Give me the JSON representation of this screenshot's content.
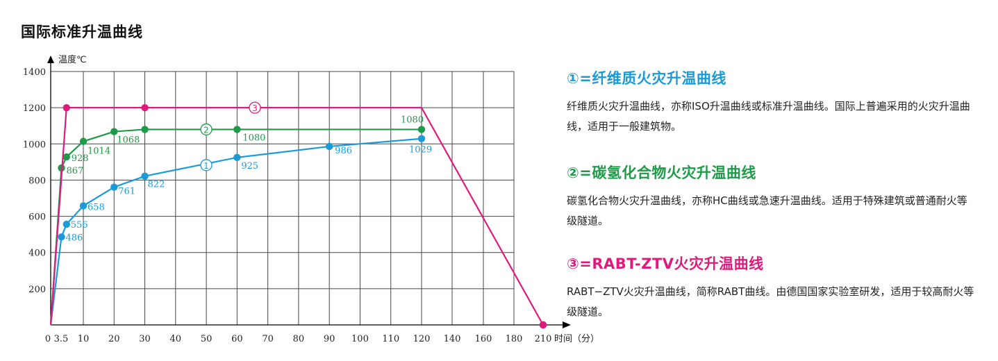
{
  "page": {
    "title": "国际标准升温曲线"
  },
  "legend": [
    {
      "heading": "①=纤维质火灾升温曲线",
      "color": "#1a9bd7",
      "desc": "纤维质火灾升温曲线，亦称ISO升温曲线或标准升温曲线。国际上普遍采用的火灾升温曲线，适用于一般建筑物。"
    },
    {
      "heading": "②=碳氢化合物火灾升温曲线",
      "color": "#1f9a48",
      "desc": "碳氢化合物火灾升温曲线，亦称HC曲线或急速升温曲线。适用于特殊建筑或普通耐火等级隧道。"
    },
    {
      "heading": "③=RABT-ZTV火灾升温曲线",
      "color": "#e0197d",
      "desc": "RABT−ZTV火灾升温曲线，简称RABT曲线。由德国国家实验室研发，适用于较高耐火等级隧道。"
    }
  ],
  "chart_data": {
    "type": "line",
    "xlabel": "时间（分）",
    "ylabel": "温度℃",
    "x_ticks": [
      "0",
      "3.5",
      "10",
      "20",
      "30",
      "40",
      "50",
      "60",
      "70",
      "80",
      "90",
      "100",
      "110",
      "120",
      "140",
      "160",
      "180",
      "210"
    ],
    "y_ticks": [
      "200",
      "400",
      "600",
      "800",
      "1000",
      "1200",
      "1400"
    ],
    "ylim": [
      0,
      1400
    ],
    "grid": true,
    "series": [
      {
        "name": "①",
        "color": "#1a9bd7",
        "points": [
          {
            "x": 0,
            "y": 0,
            "label": ""
          },
          {
            "x": 3.5,
            "y": 486,
            "label": "486"
          },
          {
            "x": 5,
            "y": 556,
            "label": "556"
          },
          {
            "x": 10,
            "y": 658,
            "label": "658"
          },
          {
            "x": 20,
            "y": 761,
            "label": "761"
          },
          {
            "x": 30,
            "y": 822,
            "label": "822"
          },
          {
            "x": 60,
            "y": 925,
            "label": "925"
          },
          {
            "x": 90,
            "y": 986,
            "label": "986"
          },
          {
            "x": 120,
            "y": 1029,
            "label": "1029"
          }
        ]
      },
      {
        "name": "②",
        "color": "#1f9a48",
        "points": [
          {
            "x": 0,
            "y": 0,
            "label": ""
          },
          {
            "x": 3.5,
            "y": 867,
            "label": "867"
          },
          {
            "x": 5,
            "y": 928,
            "label": "928"
          },
          {
            "x": 10,
            "y": 1014,
            "label": "1014"
          },
          {
            "x": 20,
            "y": 1068,
            "label": "1068"
          },
          {
            "x": 30,
            "y": 1080,
            "label": ""
          },
          {
            "x": 60,
            "y": 1080,
            "label": "1080"
          },
          {
            "x": 120,
            "y": 1080,
            "label": "1080"
          }
        ]
      },
      {
        "name": "③",
        "color": "#e0197d",
        "points": [
          {
            "x": 0,
            "y": 0,
            "label": ""
          },
          {
            "x": 5,
            "y": 1200,
            "label": ""
          },
          {
            "x": 30,
            "y": 1200,
            "label": ""
          },
          {
            "x": 120,
            "y": 1200,
            "label": ""
          },
          {
            "x": 210,
            "y": 0,
            "label": ""
          }
        ]
      }
    ]
  }
}
